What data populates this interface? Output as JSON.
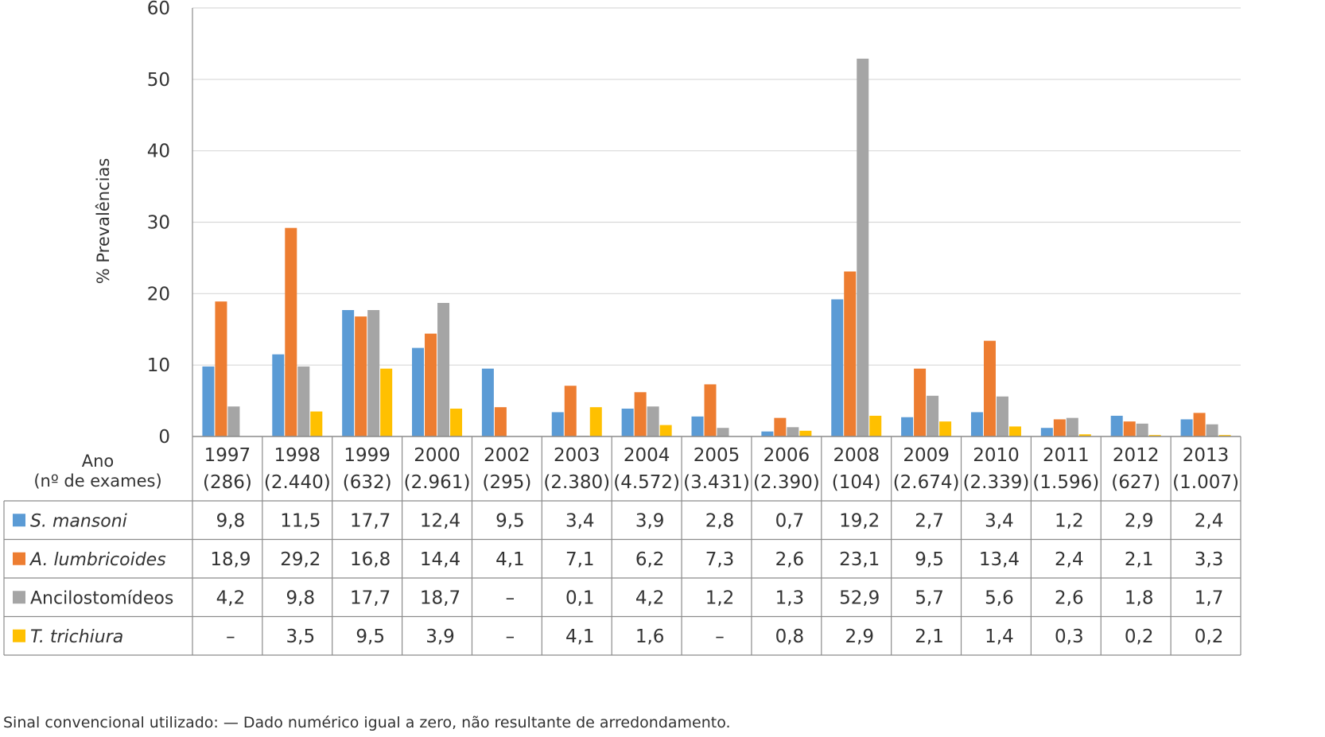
{
  "chart_data": {
    "type": "bar",
    "ylabel": "% Prevalências",
    "ylim": [
      0,
      60
    ],
    "yticks": [
      "0",
      "10",
      "20",
      "30",
      "40",
      "50",
      "60"
    ],
    "row_header": [
      "Ano",
      "(nº de exames)"
    ],
    "categories": [
      {
        "year": "1997",
        "exams": "(286)"
      },
      {
        "year": "1998",
        "exams": "(2.440)"
      },
      {
        "year": "1999",
        "exams": "(632)"
      },
      {
        "year": "2000",
        "exams": "(2.961)"
      },
      {
        "year": "2002",
        "exams": "(295)"
      },
      {
        "year": "2003",
        "exams": "(2.380)"
      },
      {
        "year": "2004",
        "exams": "(4.572)"
      },
      {
        "year": "2005",
        "exams": "(3.431)"
      },
      {
        "year": "2006",
        "exams": "(2.390)"
      },
      {
        "year": "2008",
        "exams": "(104)"
      },
      {
        "year": "2009",
        "exams": "(2.674)"
      },
      {
        "year": "2010",
        "exams": "(2.339)"
      },
      {
        "year": "2011",
        "exams": "(1.596)"
      },
      {
        "year": "2012",
        "exams": "(627)"
      },
      {
        "year": "2013",
        "exams": "(1.007)"
      }
    ],
    "series": [
      {
        "name": "S. mansoni",
        "italic": true,
        "color": "#5b9bd5",
        "values": [
          9.8,
          11.5,
          17.7,
          12.4,
          9.5,
          3.4,
          3.9,
          2.8,
          0.7,
          19.2,
          2.7,
          3.4,
          1.2,
          2.9,
          2.4
        ],
        "labels": [
          "9,8",
          "11,5",
          "17,7",
          "12,4",
          "9,5",
          "3,4",
          "3,9",
          "2,8",
          "0,7",
          "19,2",
          "2,7",
          "3,4",
          "1,2",
          "2,9",
          "2,4"
        ]
      },
      {
        "name": "A. lumbricoides",
        "italic": true,
        "color": "#ed7d31",
        "values": [
          18.9,
          29.2,
          16.8,
          14.4,
          4.1,
          7.1,
          6.2,
          7.3,
          2.6,
          23.1,
          9.5,
          13.4,
          2.4,
          2.1,
          3.3
        ],
        "labels": [
          "18,9",
          "29,2",
          "16,8",
          "14,4",
          "4,1",
          "7,1",
          "6,2",
          "7,3",
          "2,6",
          "23,1",
          "9,5",
          "13,4",
          "2,4",
          "2,1",
          "3,3"
        ]
      },
      {
        "name": "Ancilostomídeos",
        "italic": false,
        "color": "#a5a5a5",
        "values": [
          4.2,
          9.8,
          17.7,
          18.7,
          0,
          0.1,
          4.2,
          1.2,
          1.3,
          52.9,
          5.7,
          5.6,
          2.6,
          1.8,
          1.7
        ],
        "labels": [
          "4,2",
          "9,8",
          "17,7",
          "18,7",
          "–",
          "0,1",
          "4,2",
          "1,2",
          "1,3",
          "52,9",
          "5,7",
          "5,6",
          "2,6",
          "1,8",
          "1,7"
        ]
      },
      {
        "name": "T. trichiura",
        "italic": true,
        "color": "#ffc000",
        "values": [
          0,
          3.5,
          9.5,
          3.9,
          0,
          4.1,
          1.6,
          0,
          0.8,
          2.9,
          2.1,
          1.4,
          0.3,
          0.2,
          0.2
        ],
        "labels": [
          "–",
          "3,5",
          "9,5",
          "3,9",
          "–",
          "4,1",
          "1,6",
          "–",
          "0,8",
          "2,9",
          "2,1",
          "1,4",
          "0,3",
          "0,2",
          "0,2"
        ]
      }
    ],
    "footnote": "Sinal convencional utilizado: — Dado numérico igual a zero, não resultante de arredondamento."
  }
}
